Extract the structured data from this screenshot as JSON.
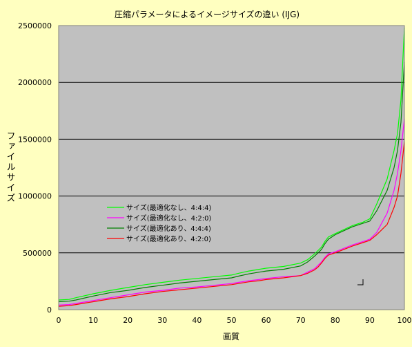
{
  "chart_data": {
    "type": "line",
    "title": "圧縮パラメータによるイメージサイズの違い (IJG)",
    "xlabel": "画質",
    "ylabel": "ファイルサイズ",
    "xlim": [
      0,
      100
    ],
    "ylim": [
      0,
      2500000
    ],
    "x_ticks": [
      0,
      10,
      20,
      30,
      40,
      50,
      60,
      70,
      80,
      90,
      100
    ],
    "y_ticks": [
      0,
      500000,
      1000000,
      1500000,
      2000000,
      2500000
    ],
    "x_tick_labels": [
      "0",
      "10",
      "20",
      "30",
      "40",
      "50",
      "60",
      "70",
      "80",
      "90",
      "100"
    ],
    "y_tick_labels": [
      "0",
      "500000",
      "1000000",
      "1500000",
      "2000000",
      "2500000"
    ],
    "grid": "horizontal",
    "plot_background": "#c0c0c0",
    "page_background": "#ffffc0",
    "legend_position": "center-left",
    "x": [
      0,
      3,
      5,
      10,
      15,
      20,
      25,
      30,
      35,
      40,
      45,
      50,
      52,
      55,
      58,
      60,
      65,
      70,
      72,
      74,
      75,
      76,
      77,
      78,
      80,
      85,
      88,
      90,
      92,
      95,
      97,
      98,
      99,
      100
    ],
    "series": [
      {
        "name": "サイズ(最適化なし、4:4:4)",
        "color": "#00ff00",
        "values": [
          85000,
          90000,
          105000,
          140000,
          170000,
          195000,
          220000,
          240000,
          260000,
          275000,
          290000,
          305000,
          320000,
          340000,
          355000,
          365000,
          380000,
          410000,
          440000,
          490000,
          520000,
          550000,
          600000,
          640000,
          670000,
          740000,
          770000,
          800000,
          930000,
          1150000,
          1400000,
          1550000,
          1850000,
          2480000
        ]
      },
      {
        "name": "サイズ(最適化なし、4:2:0)",
        "color": "#ff00ff",
        "values": [
          40000,
          45000,
          55000,
          80000,
          105000,
          130000,
          155000,
          170000,
          190000,
          200000,
          215000,
          230000,
          240000,
          255000,
          265000,
          275000,
          290000,
          300000,
          330000,
          360000,
          390000,
          420000,
          460000,
          490000,
          510000,
          570000,
          600000,
          620000,
          680000,
          850000,
          1050000,
          1200000,
          1400000,
          1680000
        ]
      },
      {
        "name": "サイズ(最適化あり、4:4:4)",
        "color": "#008000",
        "values": [
          70000,
          75000,
          85000,
          120000,
          150000,
          170000,
          195000,
          215000,
          235000,
          250000,
          265000,
          280000,
          295000,
          315000,
          330000,
          340000,
          355000,
          385000,
          420000,
          470000,
          500000,
          530000,
          580000,
          620000,
          660000,
          730000,
          760000,
          780000,
          870000,
          1050000,
          1250000,
          1400000,
          1650000,
          2180000
        ]
      },
      {
        "name": "サイズ(最適化あり、4:2:0)",
        "color": "#ff0000",
        "values": [
          30000,
          35000,
          45000,
          70000,
          95000,
          115000,
          140000,
          160000,
          175000,
          190000,
          205000,
          220000,
          230000,
          245000,
          255000,
          265000,
          280000,
          300000,
          320000,
          350000,
          375000,
          410000,
          450000,
          480000,
          500000,
          560000,
          590000,
          610000,
          660000,
          750000,
          900000,
          1000000,
          1200000,
          1480000
        ]
      }
    ]
  }
}
